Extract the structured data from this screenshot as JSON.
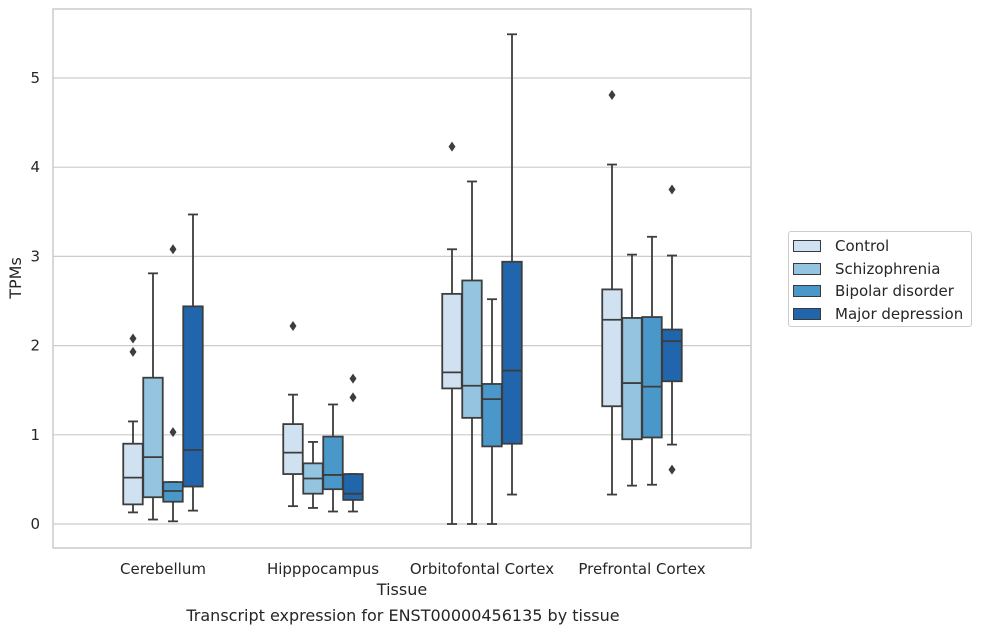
{
  "caption": "Transcript expression for ENST00000456135 by tissue",
  "chart_data": {
    "type": "box",
    "title": "",
    "xlabel": "Tissue",
    "ylabel": "TPMs",
    "ylim": [
      -0.27,
      5.78
    ],
    "yticks": [
      0,
      1,
      2,
      3,
      4,
      5
    ],
    "grid": "horizontal",
    "legend_position": "right",
    "categories": [
      "Cerebellum",
      "Hipppocampus",
      "Orbitofontal Cortex",
      "Prefrontal Cortex"
    ],
    "series": [
      {
        "name": "Control",
        "color": "#d0e1f2",
        "boxes": [
          {
            "whislo": 0.13,
            "q1": 0.22,
            "med": 0.52,
            "q3": 0.9,
            "whishi": 1.15,
            "fliers": [
              1.93,
              2.08
            ]
          },
          {
            "whislo": 0.2,
            "q1": 0.56,
            "med": 0.8,
            "q3": 1.12,
            "whishi": 1.45,
            "fliers": [
              2.22
            ]
          },
          {
            "whislo": 0.0,
            "q1": 1.52,
            "med": 1.7,
            "q3": 2.58,
            "whishi": 3.08,
            "fliers": [
              4.23
            ]
          },
          {
            "whislo": 0.33,
            "q1": 1.32,
            "med": 2.29,
            "q3": 2.63,
            "whishi": 4.03,
            "fliers": [
              4.81
            ]
          }
        ]
      },
      {
        "name": "Schizophrenia",
        "color": "#94c4df",
        "boxes": [
          {
            "whislo": 0.05,
            "q1": 0.3,
            "med": 0.75,
            "q3": 1.64,
            "whishi": 2.81,
            "fliers": []
          },
          {
            "whislo": 0.18,
            "q1": 0.34,
            "med": 0.51,
            "q3": 0.68,
            "whishi": 0.92,
            "fliers": []
          },
          {
            "whislo": 0.0,
            "q1": 1.19,
            "med": 1.55,
            "q3": 2.73,
            "whishi": 3.84,
            "fliers": []
          },
          {
            "whislo": 0.43,
            "q1": 0.95,
            "med": 1.58,
            "q3": 2.31,
            "whishi": 3.02,
            "fliers": []
          }
        ]
      },
      {
        "name": "Bipolar disorder",
        "color": "#4a98c9",
        "boxes": [
          {
            "whislo": 0.03,
            "q1": 0.25,
            "med": 0.37,
            "q3": 0.47,
            "whishi": 0.47,
            "fliers": [
              1.03,
              3.08
            ]
          },
          {
            "whislo": 0.14,
            "q1": 0.39,
            "med": 0.55,
            "q3": 0.98,
            "whishi": 1.34,
            "fliers": []
          },
          {
            "whislo": 0.0,
            "q1": 0.87,
            "med": 1.4,
            "q3": 1.57,
            "whishi": 2.52,
            "fliers": []
          },
          {
            "whislo": 0.44,
            "q1": 0.97,
            "med": 1.54,
            "q3": 2.32,
            "whishi": 3.22,
            "fliers": []
          }
        ]
      },
      {
        "name": "Major depression",
        "color": "#2166ac",
        "boxes": [
          {
            "whislo": 0.15,
            "q1": 0.42,
            "med": 0.83,
            "q3": 2.44,
            "whishi": 3.47,
            "fliers": []
          },
          {
            "whislo": 0.14,
            "q1": 0.27,
            "med": 0.34,
            "q3": 0.56,
            "whishi": 0.56,
            "fliers": [
              1.42,
              1.63
            ]
          },
          {
            "whislo": 0.33,
            "q1": 0.9,
            "med": 1.72,
            "q3": 2.94,
            "whishi": 5.49,
            "fliers": []
          },
          {
            "whislo": 0.89,
            "q1": 1.6,
            "med": 2.05,
            "q3": 2.18,
            "whishi": 3.01,
            "fliers": [
              0.61,
              3.75
            ]
          }
        ]
      }
    ]
  }
}
